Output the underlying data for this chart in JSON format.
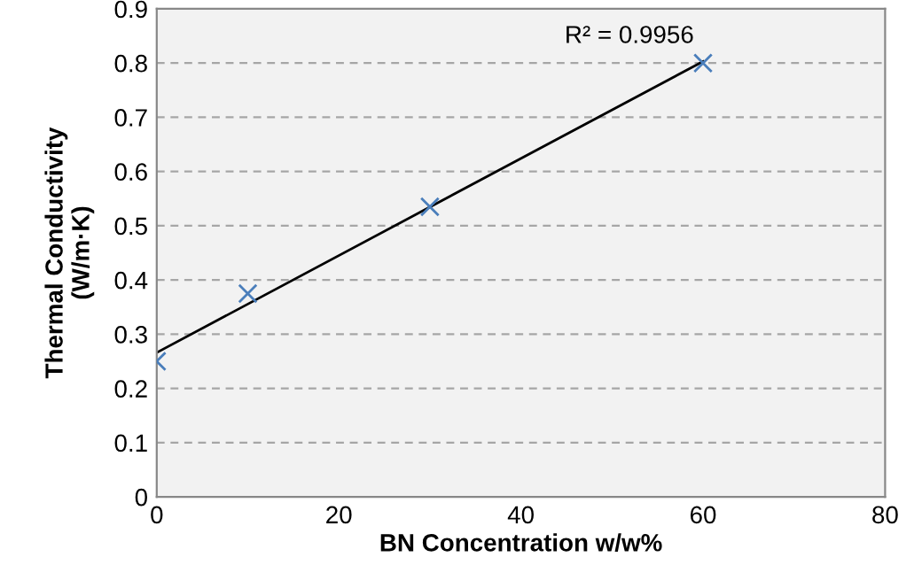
{
  "chart_data": {
    "type": "scatter",
    "xlabel": "BN Concentration w/w%",
    "ylabel": "Thermal Conductivity\n(W/m·K)",
    "x": [
      0,
      10,
      30,
      60
    ],
    "series": [
      {
        "color": "#4a7ebb",
        "values": [
          0.25,
          0.375,
          0.535,
          0.8
        ],
        "marker": "cross"
      },
      {
        "type": "line",
        "color": "#000000",
        "x": [
          0,
          60
        ],
        "values": [
          0.266,
          0.803
        ],
        "marker": "none",
        "line_style": "solid"
      }
    ],
    "annotations": [
      "R² = 0.9956"
    ],
    "xlim": [
      0,
      80
    ],
    "xticks": [
      0,
      20,
      40,
      60,
      80
    ],
    "ylim": [
      0,
      0.9
    ],
    "yticks": [
      0,
      0.1,
      0.2,
      0.3,
      0.4,
      0.5,
      0.6,
      0.7,
      0.8,
      0.9
    ],
    "grid": "y",
    "legend": false
  }
}
